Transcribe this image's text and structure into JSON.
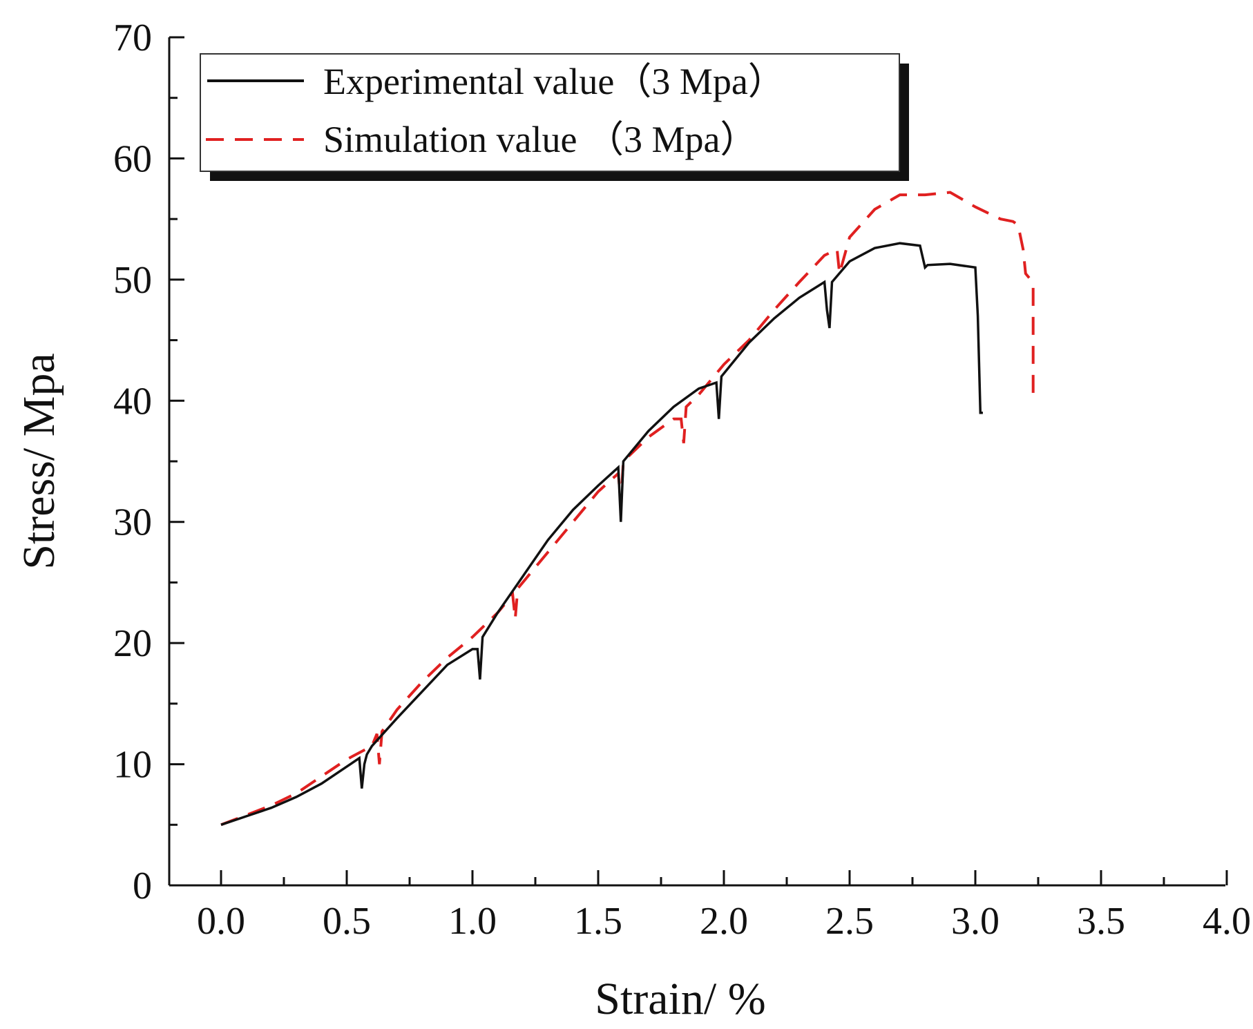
{
  "chart_data": {
    "type": "line",
    "title": "",
    "xlabel": "Strain/ %",
    "ylabel": "Stress/ Mpa",
    "xlim": [
      0,
      4
    ],
    "ylim": [
      0,
      70
    ],
    "x_ticks": [
      0.0,
      0.5,
      1.0,
      1.5,
      2.0,
      2.5,
      3.0,
      3.5,
      4.0
    ],
    "x_tick_labels": [
      "0.0",
      "0.5",
      "1.0",
      "1.5",
      "2.0",
      "2.5",
      "3.0",
      "3.5",
      "4.0"
    ],
    "y_ticks": [
      0,
      10,
      20,
      30,
      40,
      50,
      60,
      70
    ],
    "y_tick_labels": [
      "0",
      "10",
      "20",
      "30",
      "40",
      "50",
      "60",
      "70"
    ],
    "grid": false,
    "legend_position": "top-left",
    "series": [
      {
        "name": "Experimental value（3 Mpa）",
        "color": "#111111",
        "style": "solid",
        "x": [
          0.0,
          0.1,
          0.2,
          0.3,
          0.4,
          0.5,
          0.55,
          0.56,
          0.57,
          0.58,
          0.6,
          0.7,
          0.8,
          0.9,
          1.0,
          1.02,
          1.03,
          1.04,
          1.1,
          1.2,
          1.3,
          1.4,
          1.5,
          1.58,
          1.59,
          1.6,
          1.7,
          1.8,
          1.9,
          1.97,
          1.98,
          1.99,
          2.1,
          2.2,
          2.3,
          2.4,
          2.41,
          2.42,
          2.43,
          2.5,
          2.6,
          2.7,
          2.78,
          2.8,
          2.81,
          2.9,
          3.0,
          3.01,
          3.02,
          3.03
        ],
        "y": [
          5.0,
          5.7,
          6.4,
          7.3,
          8.4,
          9.8,
          10.5,
          8.0,
          10.0,
          10.8,
          11.5,
          13.8,
          16.0,
          18.2,
          19.5,
          19.5,
          17.0,
          20.5,
          22.5,
          25.5,
          28.5,
          31.0,
          33.0,
          34.5,
          30.0,
          35.0,
          37.5,
          39.5,
          41.0,
          41.5,
          38.5,
          42.0,
          44.8,
          46.8,
          48.5,
          49.8,
          47.5,
          46.0,
          49.8,
          51.5,
          52.6,
          53.0,
          52.8,
          51.0,
          51.2,
          51.3,
          51.0,
          47.0,
          39.0,
          39.0
        ]
      },
      {
        "name": "Simulation value （3 Mpa）",
        "color": "#e02020",
        "style": "dashed",
        "x": [
          0.0,
          0.1,
          0.2,
          0.3,
          0.4,
          0.5,
          0.6,
          0.62,
          0.63,
          0.64,
          0.7,
          0.8,
          0.9,
          1.0,
          1.1,
          1.16,
          1.17,
          1.18,
          1.3,
          1.4,
          1.5,
          1.58,
          1.59,
          1.6,
          1.7,
          1.8,
          1.83,
          1.84,
          1.85,
          1.9,
          2.0,
          2.1,
          2.2,
          2.3,
          2.4,
          2.45,
          2.46,
          2.5,
          2.6,
          2.7,
          2.8,
          2.9,
          3.0,
          3.1,
          3.15,
          3.17,
          3.19,
          3.2,
          3.22,
          3.23,
          3.23
        ],
        "y": [
          5.0,
          5.8,
          6.6,
          7.6,
          9.0,
          10.4,
          11.5,
          12.5,
          10.0,
          12.7,
          14.5,
          16.8,
          18.8,
          20.5,
          22.5,
          24.0,
          22.0,
          24.5,
          27.5,
          30.0,
          32.5,
          34.0,
          31.5,
          35.0,
          37.0,
          38.5,
          38.5,
          36.5,
          39.5,
          40.5,
          43.0,
          45.0,
          47.5,
          49.8,
          52.0,
          52.5,
          50.5,
          53.5,
          55.8,
          57.0,
          57.0,
          57.2,
          56.0,
          55.0,
          54.8,
          54.5,
          52.5,
          50.5,
          50.0,
          49.5,
          40.0
        ]
      }
    ]
  }
}
